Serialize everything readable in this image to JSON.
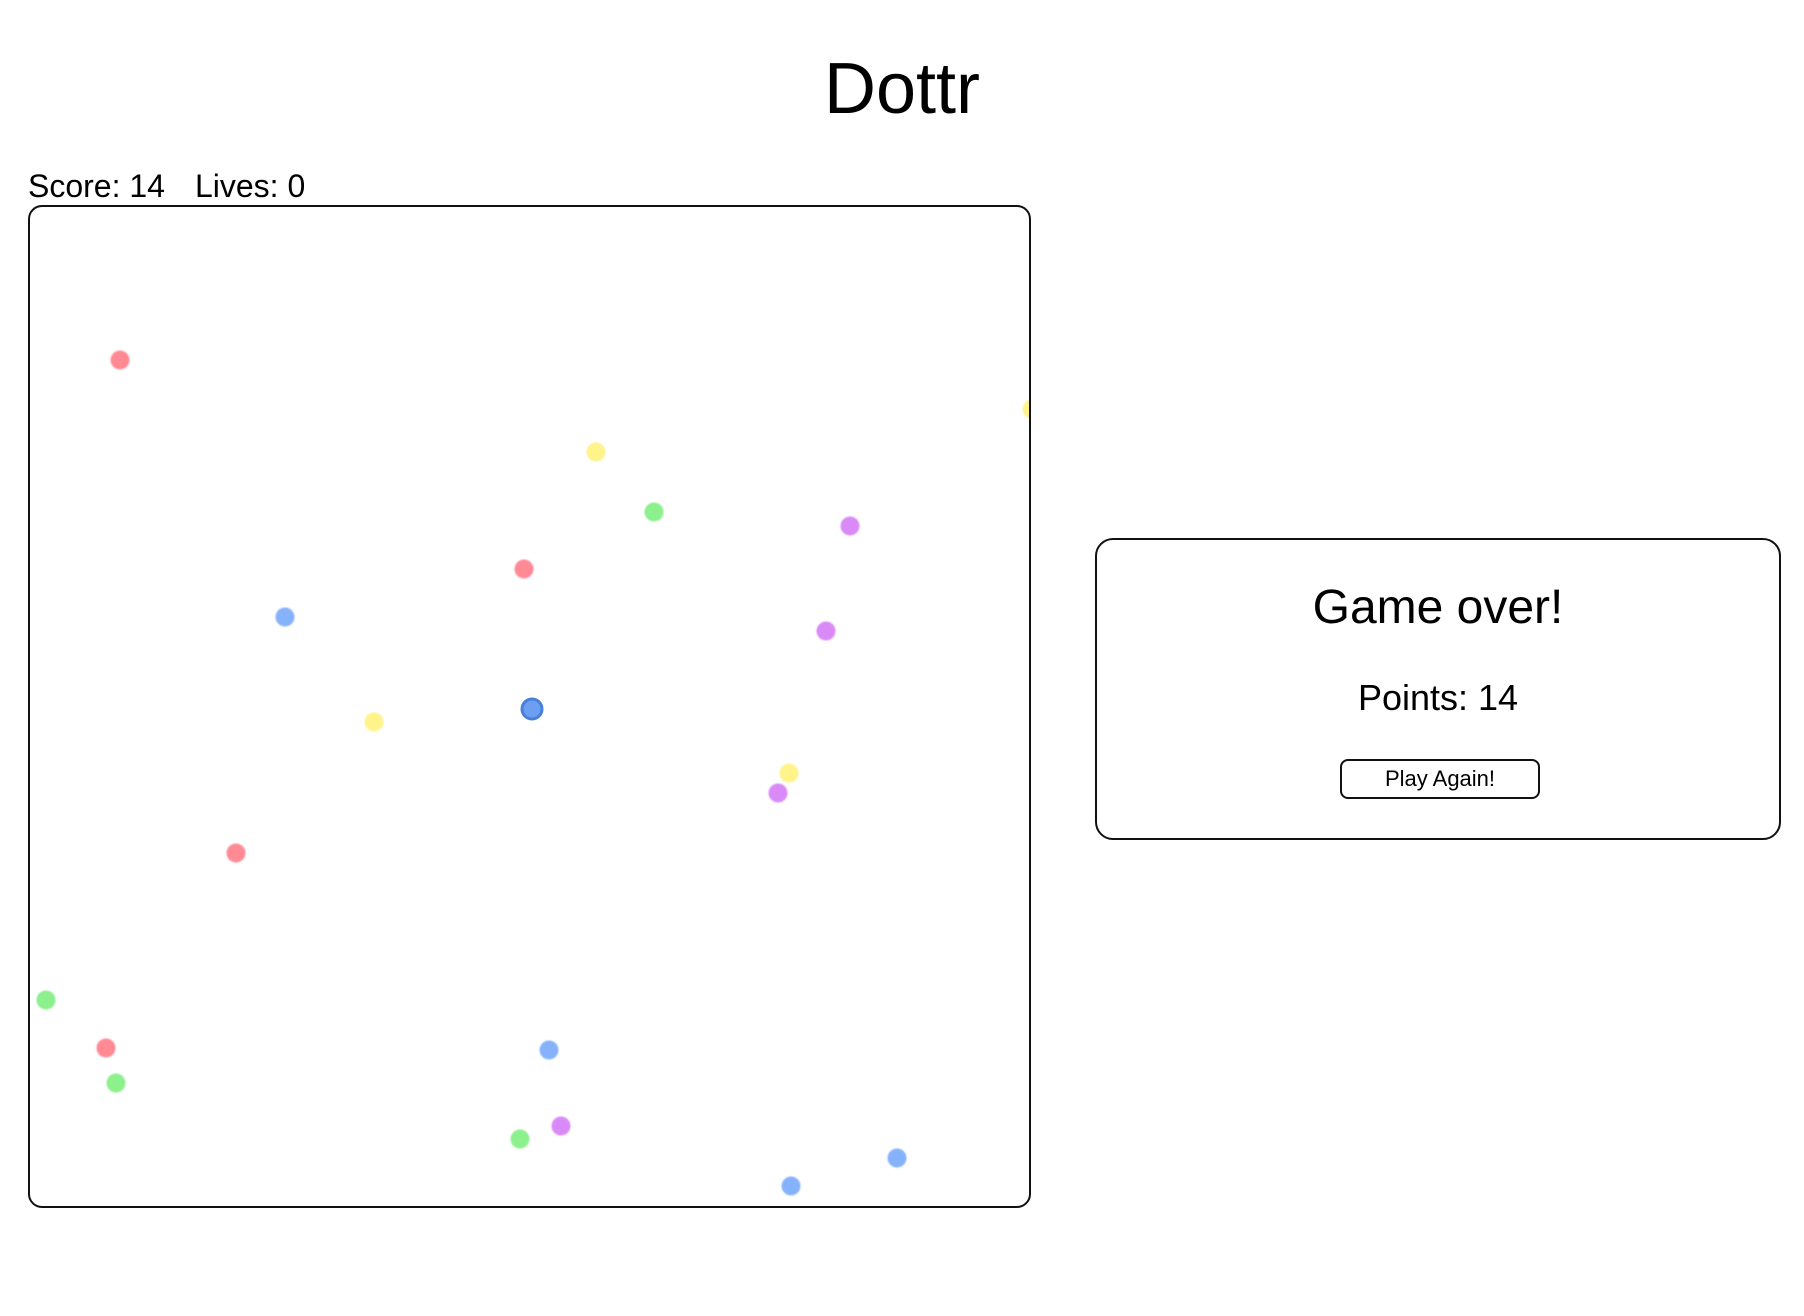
{
  "app": {
    "title": "Dottr"
  },
  "hud": {
    "score_label": "Score: 14",
    "lives_label": "Lives: 0",
    "score": 14,
    "lives": 0
  },
  "board": {
    "colors": {
      "red": "#ff8a94",
      "yellow": "#fff38a",
      "green": "#8cf08c",
      "purple": "#d98af7",
      "blue": "#86b2fb",
      "player": "#6c9ef2"
    },
    "dots": [
      {
        "color": "red"
      },
      {
        "color": "yellow"
      },
      {
        "color": "yellow"
      },
      {
        "color": "green"
      },
      {
        "color": "purple"
      },
      {
        "color": "red"
      },
      {
        "color": "blue"
      },
      {
        "color": "purple"
      },
      {
        "color": "yellow"
      },
      {
        "color": "yellow"
      },
      {
        "color": "purple"
      },
      {
        "color": "red"
      },
      {
        "color": "green"
      },
      {
        "color": "red"
      },
      {
        "color": "green"
      },
      {
        "color": "blue"
      },
      {
        "color": "purple"
      },
      {
        "color": "green"
      },
      {
        "color": "blue"
      },
      {
        "color": "blue"
      }
    ],
    "player": {
      "color": "player"
    }
  },
  "gameover": {
    "title": "Game over!",
    "points_label": "Points: 14",
    "button_label": "Play Again!"
  }
}
